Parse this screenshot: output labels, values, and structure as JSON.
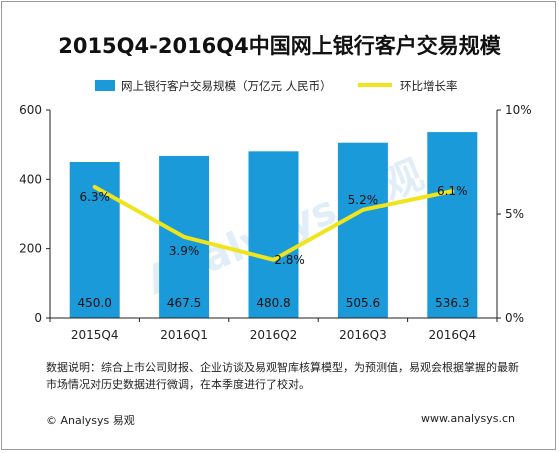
{
  "chart_data": {
    "type": "bar",
    "title": "2015Q4-2016Q4中国网上银行客户交易规模",
    "categories": [
      "2015Q4",
      "2016Q1",
      "2016Q2",
      "2016Q3",
      "2016Q4"
    ],
    "series": [
      {
        "name": "网上银行客户交易规模（万亿元 人民币）",
        "type": "bar",
        "axis": "left",
        "color": "#1b9ad9",
        "values": [
          450.0,
          467.5,
          480.8,
          505.6,
          536.3
        ],
        "labels": [
          "450.0",
          "467.5",
          "480.8",
          "505.6",
          "536.3"
        ]
      },
      {
        "name": "环比增长率",
        "type": "line",
        "axis": "right",
        "color": "#f0e41c",
        "values": [
          6.3,
          3.9,
          2.8,
          5.2,
          6.1
        ],
        "labels": [
          "6.3%",
          "3.9%",
          "2.8%",
          "5.2%",
          "6.1%"
        ]
      }
    ],
    "ylim_left": [
      0,
      600
    ],
    "yticks_left": [
      0,
      200,
      400,
      600
    ],
    "ylim_right": [
      0,
      10
    ],
    "yticks_right": [
      "0%",
      "5%",
      "10%"
    ],
    "legend_position": "top",
    "grid": false
  },
  "note": "数据说明：综合上市公司财报、企业访谈及易观智库核算模型，为预测值，易观会根据掌握的最新市场情况对历史数据进行微调，在本季度进行了校对。",
  "footer": {
    "source": "© Analysys 易观",
    "url": "www.analysys.cn"
  },
  "watermark": "Analysys 易观",
  "colors": {
    "bar": "#1b9ad9",
    "line": "#f0e41c",
    "axis": "#222222"
  }
}
